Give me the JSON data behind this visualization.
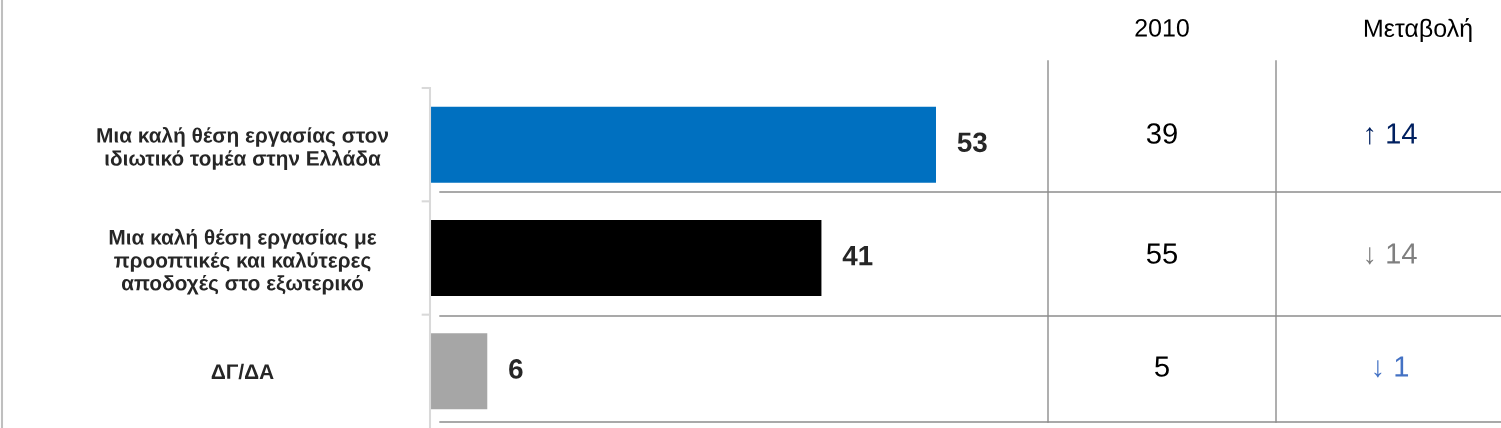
{
  "chart_data": {
    "type": "bar",
    "orientation": "horizontal",
    "categories": [
      "Μια καλή θέση εργασίας στον\nιδιωτικό τομέα στην Ελλάδα",
      "Μια καλή θέση εργασίας με\nπροοπτικές και καλύτερες\nαποδοχές στο εξωτερικό",
      "ΔΓ/ΔΑ"
    ],
    "values": [
      53,
      41,
      6
    ],
    "colors": [
      "#0070c0",
      "#000000",
      "#a6a6a6"
    ],
    "data_labels": true,
    "grid": false,
    "legend": false,
    "annotations": [
      "2010",
      "Μεταβολή",
      "39",
      "↑ 14",
      "55",
      "↓ 14",
      "5",
      "↓ 1"
    ]
  }
}
